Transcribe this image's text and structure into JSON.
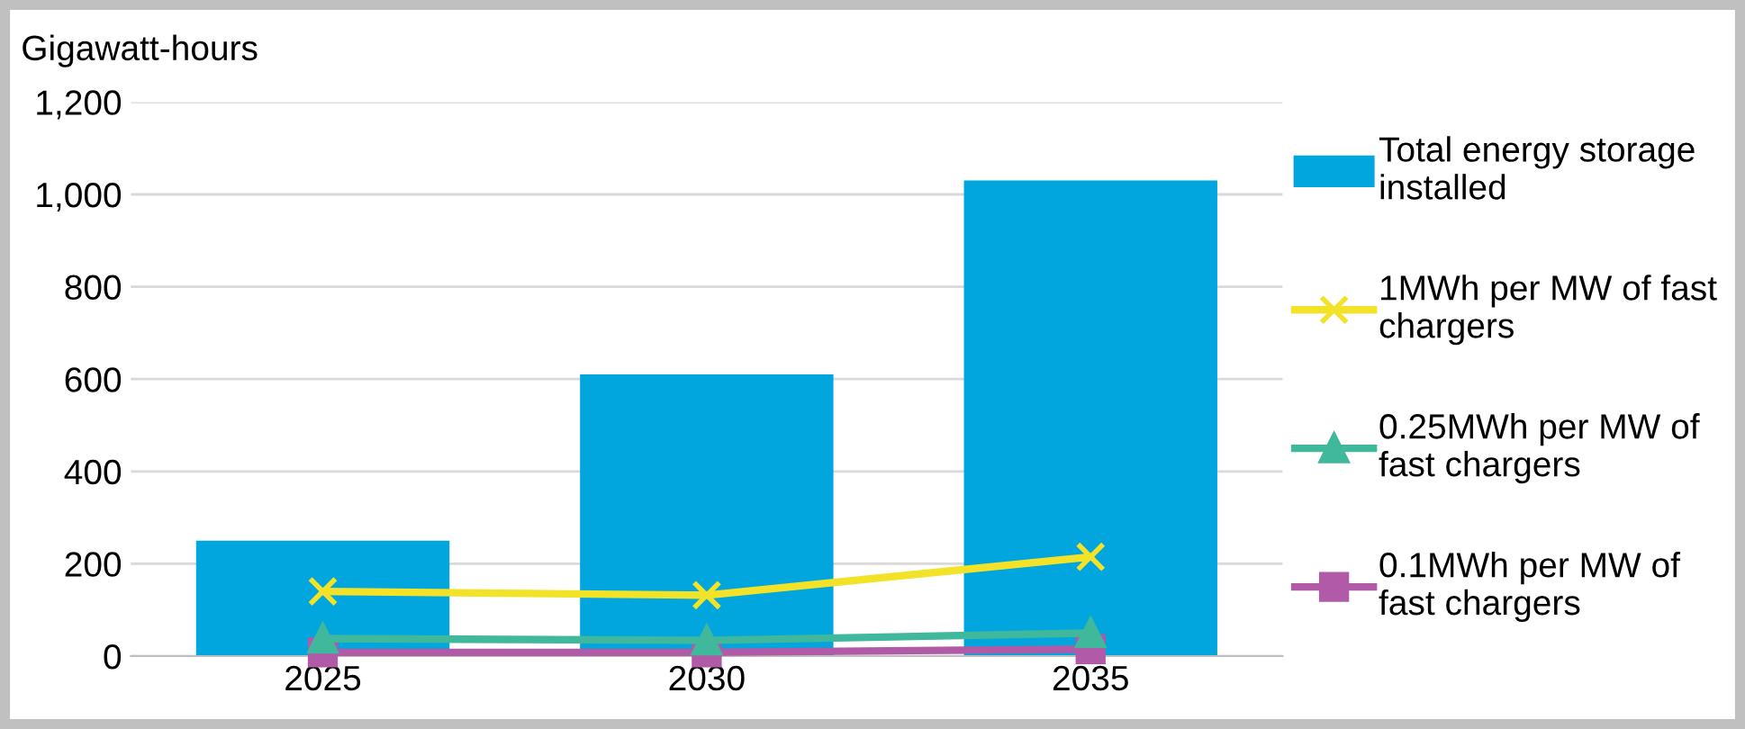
{
  "chart_data": {
    "type": "bar",
    "ylabel": "Gigawatt-hours",
    "categories": [
      "2025",
      "2030",
      "2035"
    ],
    "series": [
      {
        "name": "Total energy storage installed",
        "color": "#00a6dd",
        "values": [
          250,
          610,
          1030
        ]
      },
      {
        "name": "1MWh per MW of fast chargers",
        "type": "line",
        "color": "#f2e228",
        "marker": "cross",
        "values": [
          140,
          132,
          215
        ]
      },
      {
        "name": "0.25MWh per MW of fast chargers",
        "type": "line",
        "color": "#3fb89c",
        "marker": "triangle",
        "values": [
          38,
          34,
          50
        ]
      },
      {
        "name": "0.1MWh per MW of fast chargers",
        "type": "line",
        "color": "#b05aa8",
        "marker": "square",
        "values": [
          8,
          8,
          15
        ]
      }
    ],
    "ylim": [
      0,
      1200
    ],
    "yticks": [
      {
        "value": 0,
        "label": "0"
      },
      {
        "value": 200,
        "label": "200"
      },
      {
        "value": 400,
        "label": "400"
      },
      {
        "value": 600,
        "label": "600"
      },
      {
        "value": 800,
        "label": "800"
      },
      {
        "value": 1000,
        "label": "1,000"
      },
      {
        "value": 1200,
        "label": "1,200"
      }
    ],
    "grid": "y",
    "legend": "right"
  }
}
